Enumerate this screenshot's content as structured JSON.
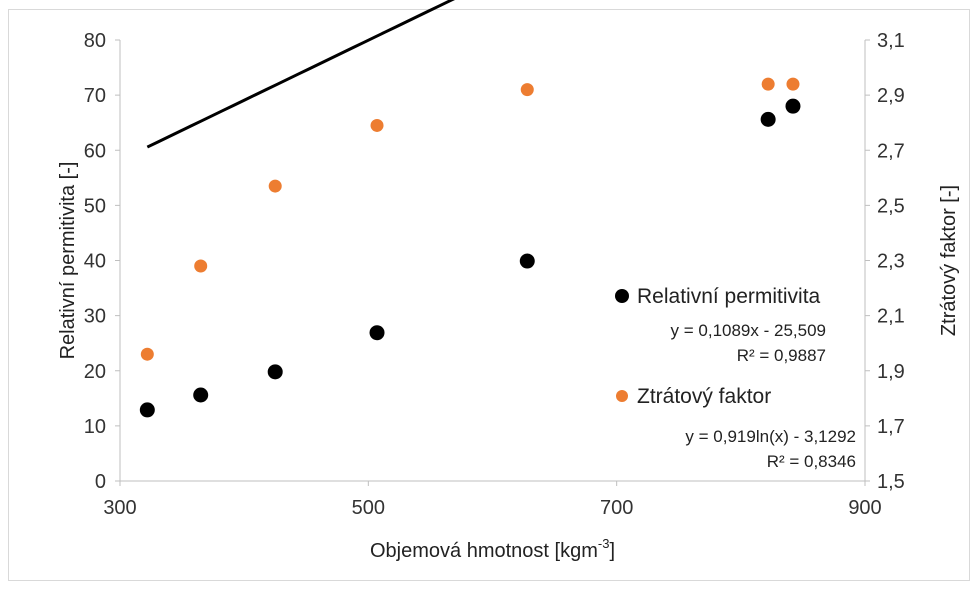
{
  "chart_data": {
    "type": "scatter",
    "xlabel": "Objemová hmotnost [kgm",
    "xlabel_sup": "-3",
    "xlabel_end": "]",
    "ylabel": "Relativní permitivita [-]",
    "y2label": "Ztrátový faktor [-]",
    "xlim": [
      300,
      900
    ],
    "ylim": [
      0,
      80
    ],
    "y2lim": [
      1.5,
      3.1
    ],
    "x_ticks": [
      "300",
      "500",
      "700",
      "900"
    ],
    "y_ticks": [
      "0",
      "10",
      "20",
      "30",
      "40",
      "50",
      "60",
      "70",
      "80"
    ],
    "y2_ticks": [
      "1,5",
      "1,7",
      "1,9",
      "2,1",
      "2,3",
      "2,5",
      "2,7",
      "2,9",
      "3,1"
    ],
    "grid": false,
    "legend_position": "right-center",
    "series": [
      {
        "name": "Relativní permitivita",
        "axis": "left",
        "color": "#000000",
        "x": [
          322,
          365,
          425,
          507,
          628,
          822,
          842
        ],
        "y": [
          12.9,
          15.6,
          19.8,
          26.9,
          39.9,
          65.6,
          68.0
        ],
        "trendline": {
          "type": "linear",
          "equation": "y = 0,1089x - 25,509",
          "r2": "R² = 0,9887",
          "x_range": [
            322,
            845
          ]
        }
      },
      {
        "name": "Ztrátový faktor",
        "axis": "right",
        "color": "#ed7d31",
        "x": [
          322,
          365,
          425,
          507,
          628,
          822,
          842
        ],
        "y": [
          1.96,
          2.28,
          2.57,
          2.79,
          2.92,
          2.94,
          2.94
        ],
        "trendline": {
          "type": "logarithmic",
          "equation": "y = 0,919ln(x) - 3,1292",
          "r2": "R² = 0,8346",
          "x_range": [
            322,
            845
          ]
        }
      }
    ]
  }
}
